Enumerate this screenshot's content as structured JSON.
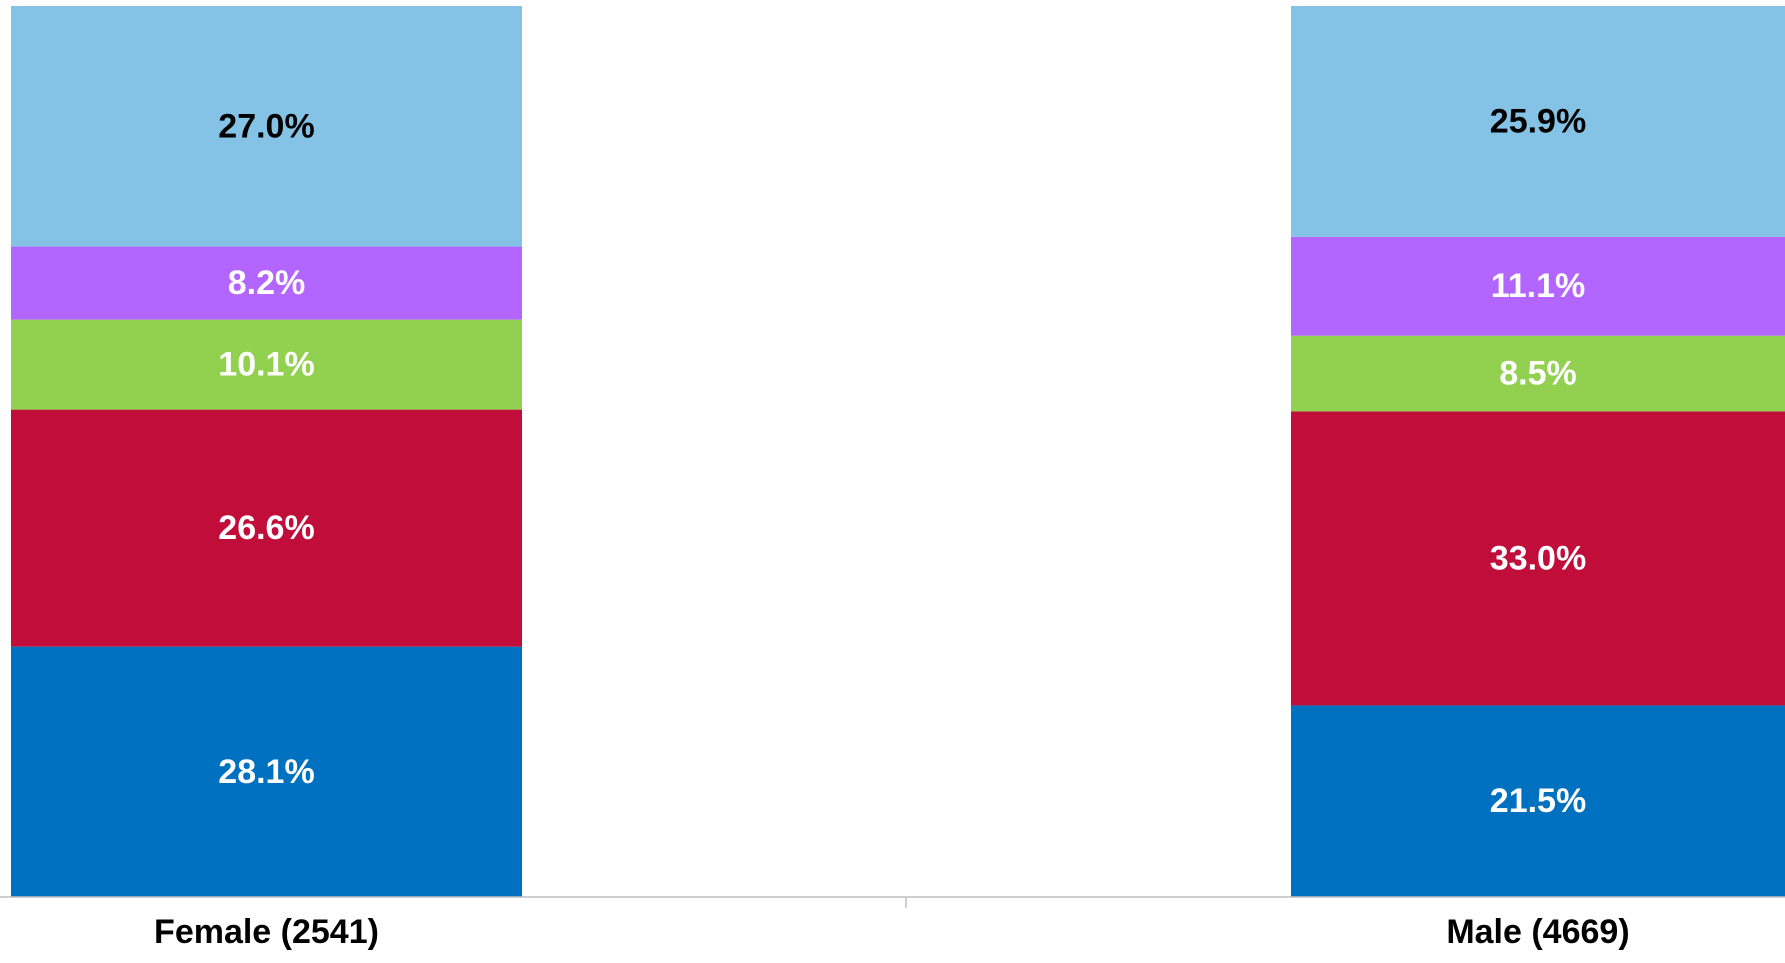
{
  "chart_data": {
    "type": "bar",
    "stacked": true,
    "percent_stacked": true,
    "categories": [
      "Female (2541)",
      "Male (4669)"
    ],
    "series": [
      {
        "color": "#0070C0",
        "label_color": "#FFFFFF",
        "values": [
          28.1,
          21.5
        ],
        "labels": [
          "28.1%",
          "21.5%"
        ]
      },
      {
        "color": "#C00D3A",
        "label_color": "#FFFFFF",
        "values": [
          26.6,
          33.0
        ],
        "labels": [
          "26.6%",
          "33.0%"
        ]
      },
      {
        "color": "#92D050",
        "label_color": "#FFFFFF",
        "values": [
          10.1,
          8.5
        ],
        "labels": [
          "10.1%",
          "8.5%"
        ]
      },
      {
        "color": "#B266FF",
        "label_color": "#FFFFFF",
        "values": [
          8.2,
          11.1
        ],
        "labels": [
          "8.2%",
          "11.1%"
        ]
      },
      {
        "color": "#84C3E6",
        "label_color": "#000000",
        "values": [
          27.0,
          25.9
        ],
        "labels": [
          "27.0%",
          "25.9%"
        ]
      }
    ],
    "ylim": [
      0,
      100
    ],
    "title": "",
    "xlabel": "",
    "ylabel": "",
    "grid": false,
    "legend": false
  }
}
